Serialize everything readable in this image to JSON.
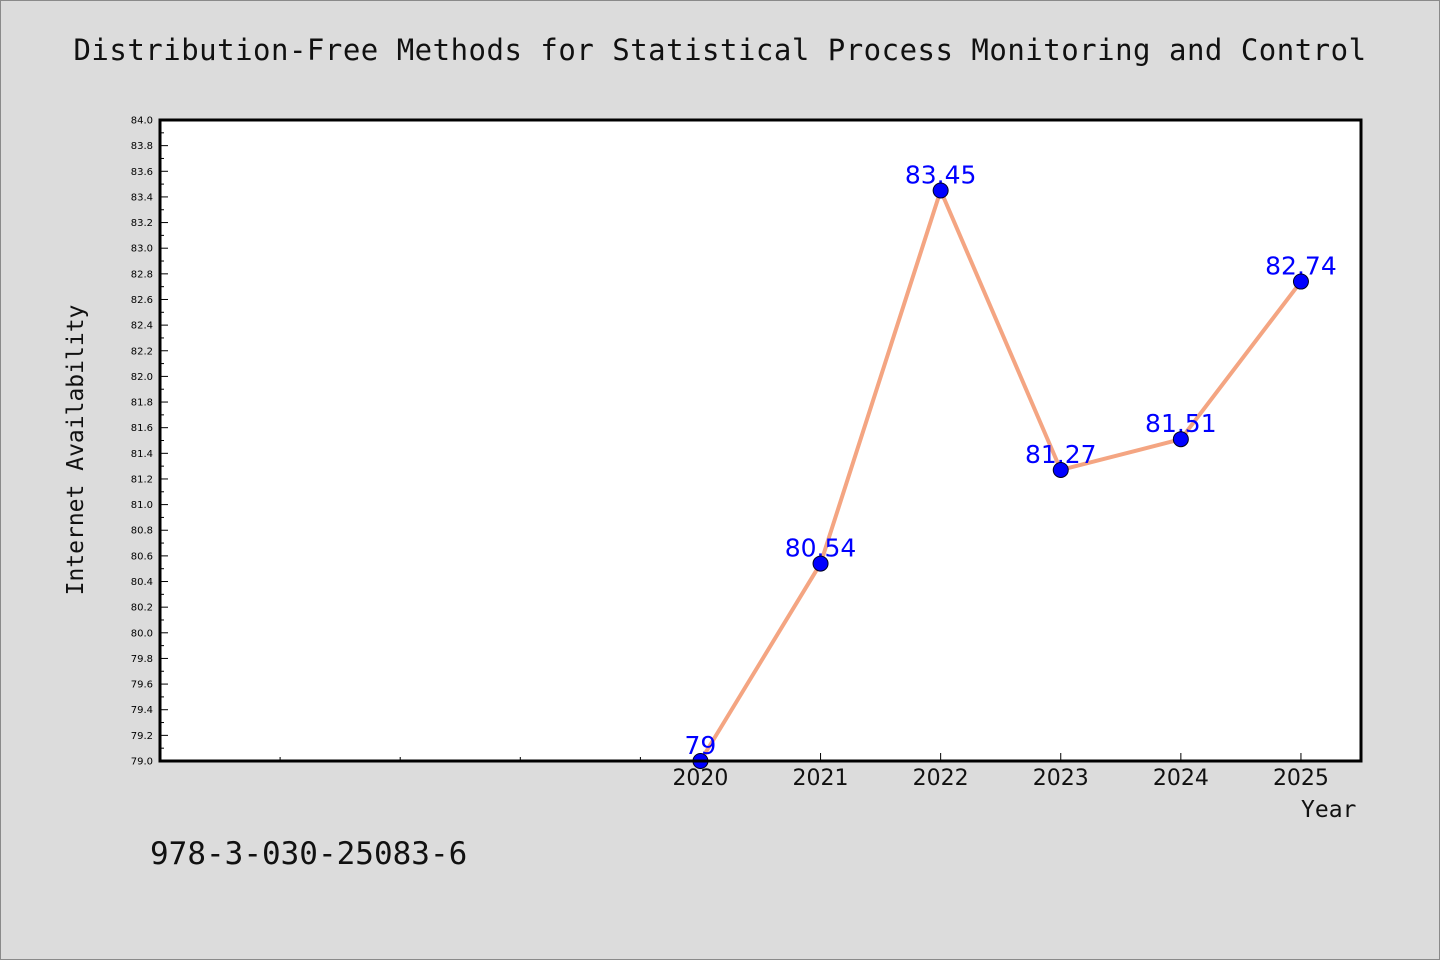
{
  "title": "Distribution-Free Methods for Statistical Process Monitoring and Control",
  "footer_text": "978-3-030-25083-6",
  "colors": {
    "background": "#dcdcdc",
    "plot_background": "#ffffff",
    "line": "#f4a582",
    "marker": "#0000ff",
    "data_label": "#0000ff"
  },
  "chart_data": {
    "type": "line",
    "title": "Distribution-Free Methods for Statistical Process Monitoring and Control",
    "xlabel": "Year",
    "ylabel": "Internet Availability",
    "x_range": [
      2015.5,
      2025.5
    ],
    "ylim": [
      79.0,
      84.0
    ],
    "y_tick_step": 0.2,
    "grid": false,
    "x": [
      "2020",
      "2021",
      "2022",
      "2023",
      "2024",
      "2025"
    ],
    "series": [
      {
        "values": [
          79,
          80.54,
          83.45,
          81.27,
          81.51,
          82.74
        ],
        "data_labels": [
          "79",
          "80.54",
          "83.45",
          "81.27",
          "81.51",
          "82.74"
        ]
      }
    ]
  }
}
